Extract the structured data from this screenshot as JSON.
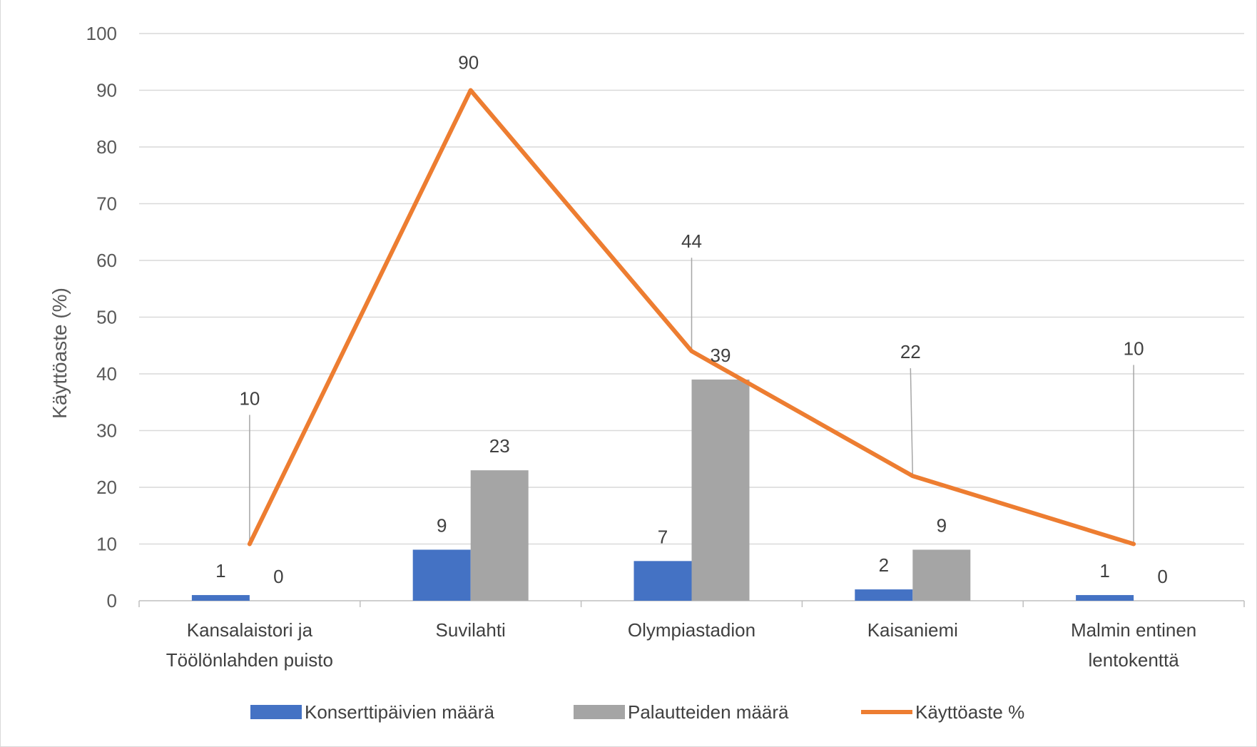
{
  "chart_data": {
    "type": "bar",
    "ylabel": "Käyttöaste (%)",
    "ylim": [
      0,
      100
    ],
    "yticks": [
      "0",
      "10",
      "20",
      "30",
      "40",
      "50",
      "60",
      "70",
      "80",
      "90",
      "100"
    ],
    "grid": true,
    "legend_position": "bottom",
    "categories": [
      [
        "Kansalaistori ja",
        "Töölönlahden puisto"
      ],
      [
        "Suvilahti"
      ],
      [
        "Olympiastadion"
      ],
      [
        "Kaisaniemi"
      ],
      [
        "Malmin entinen",
        "lentokenttä"
      ]
    ],
    "series": [
      {
        "name": "Konserttipäivien määrä",
        "type": "bar",
        "color": "#4472c4",
        "values": [
          1,
          9,
          7,
          2,
          1
        ]
      },
      {
        "name": "Palautteiden määrä",
        "type": "bar",
        "color": "#a5a5a5",
        "values": [
          0,
          23,
          39,
          9,
          0
        ]
      },
      {
        "name": "Käyttöaste %",
        "type": "line",
        "color": "#ed7d31",
        "values": [
          10,
          90,
          44,
          22,
          10
        ]
      }
    ]
  }
}
